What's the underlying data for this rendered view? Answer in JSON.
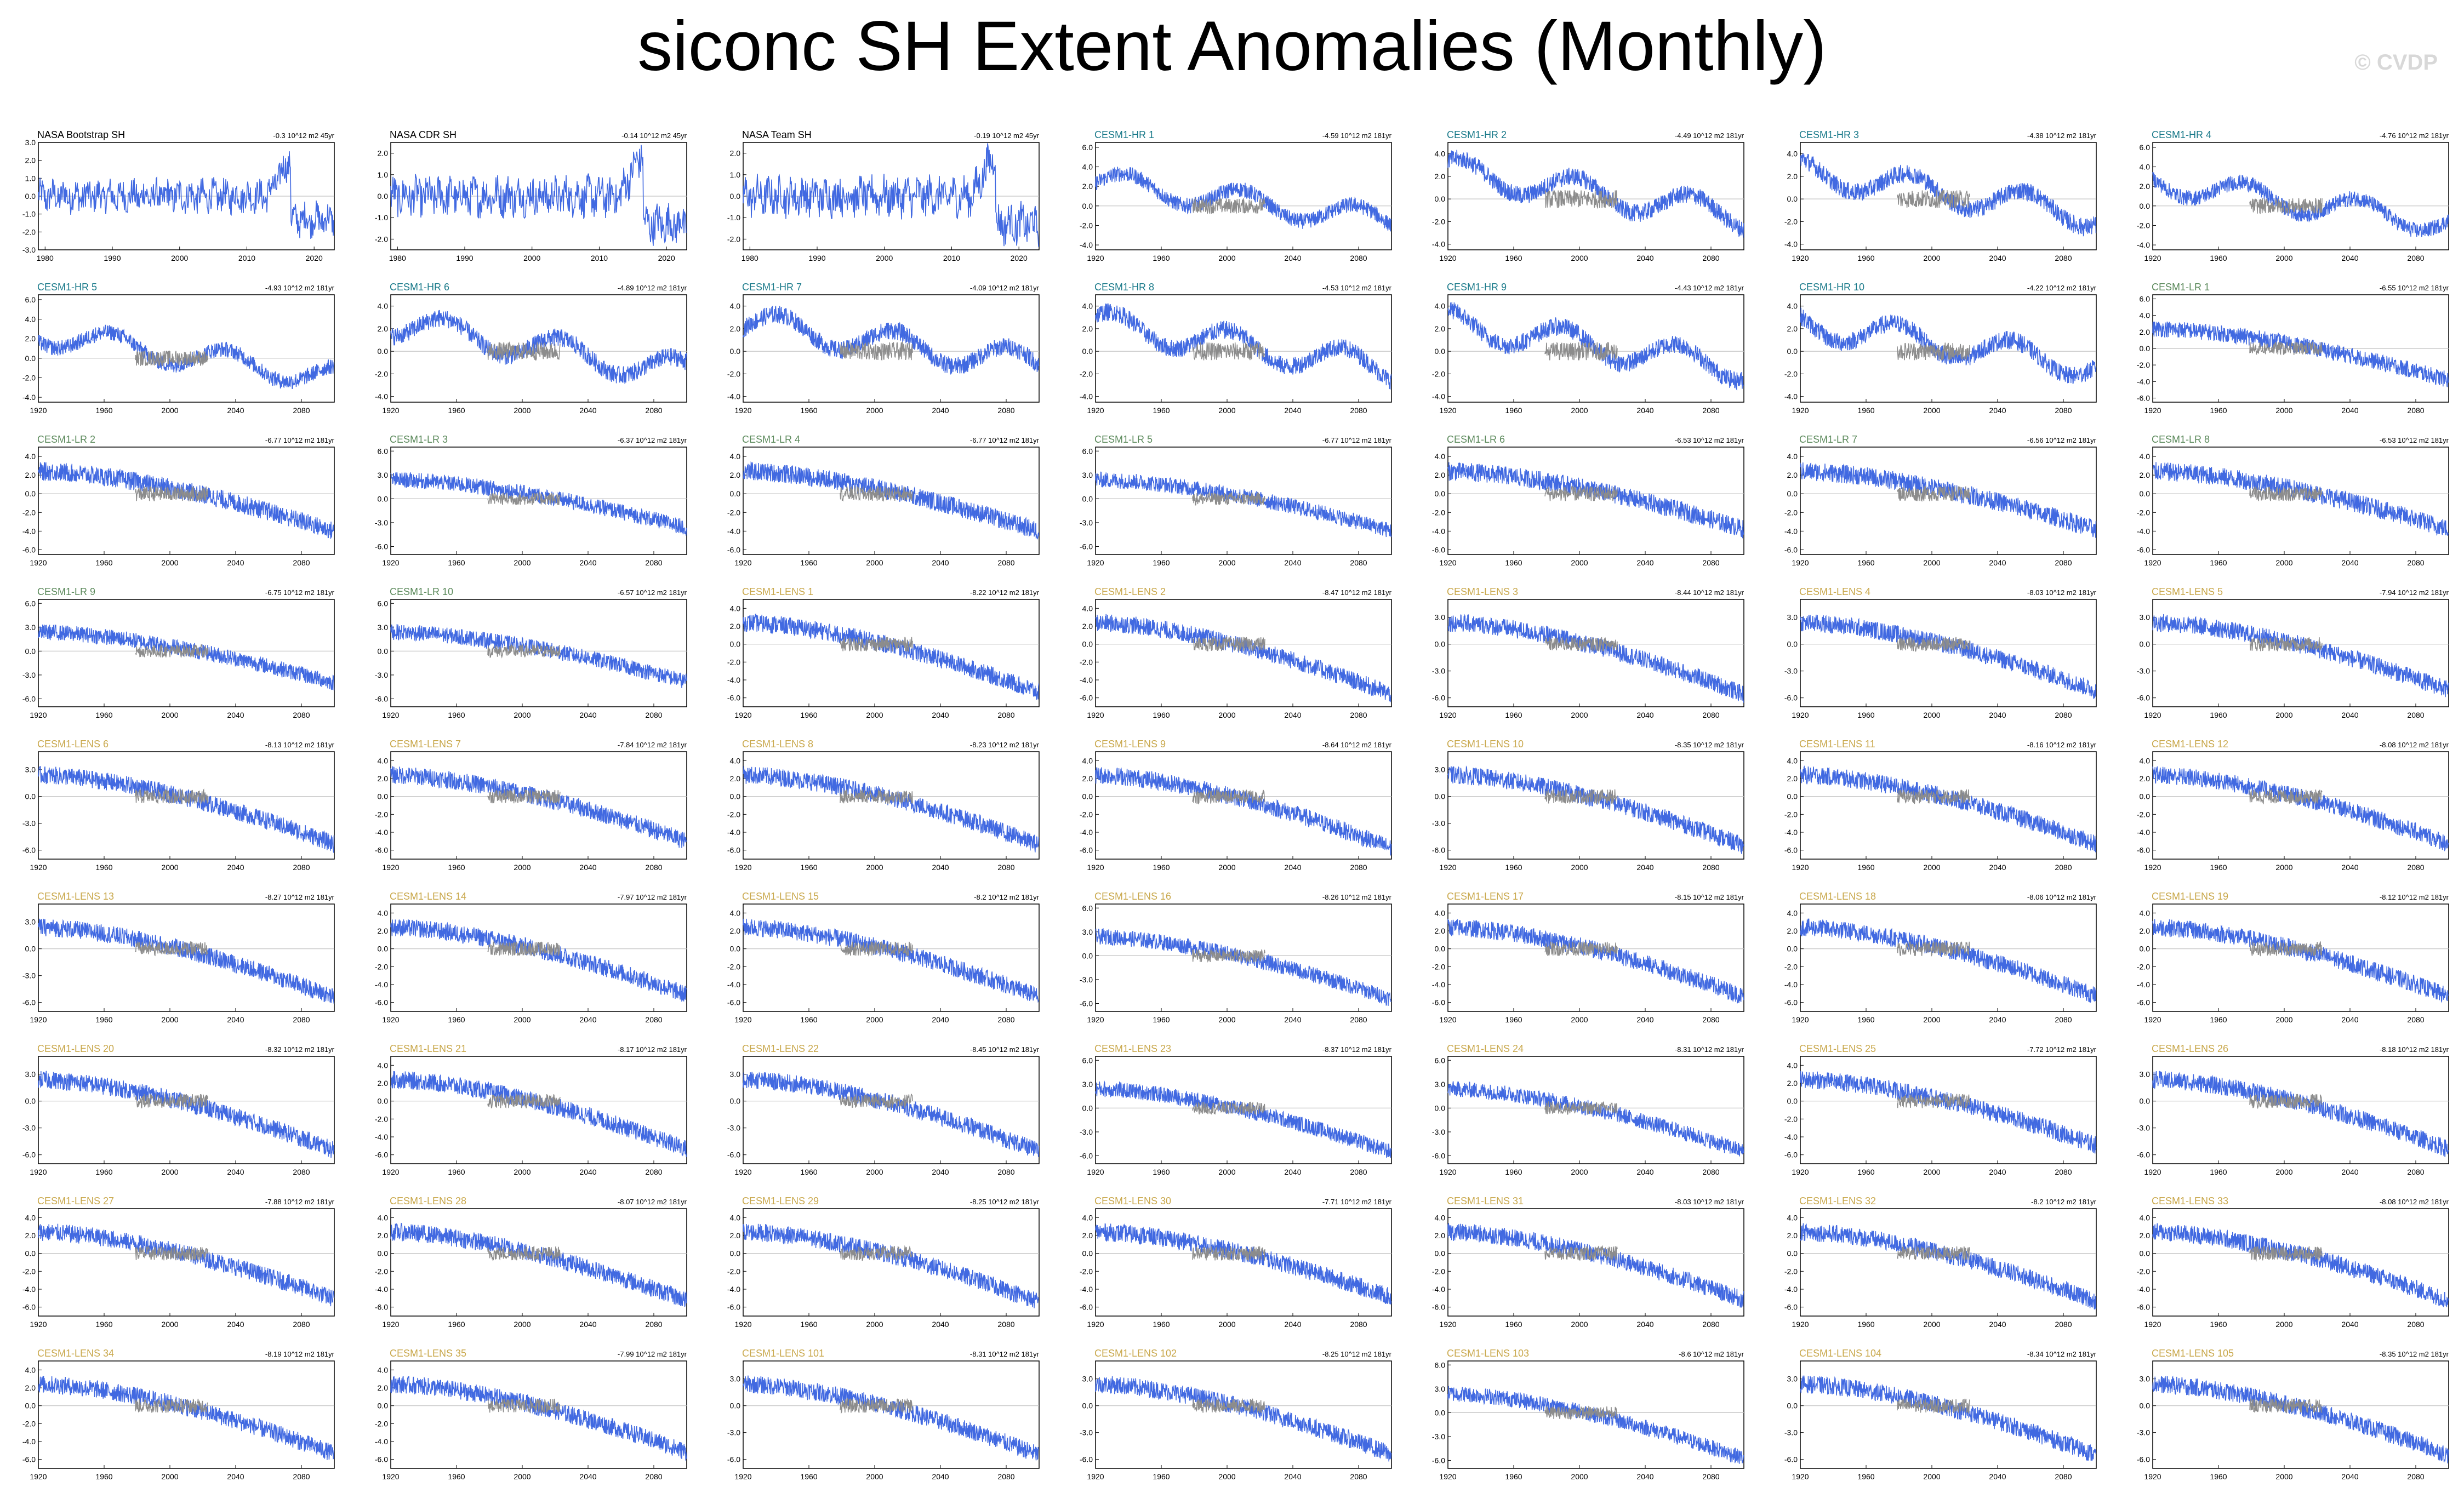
{
  "title": "siconc SH Extent Anomalies (Monthly)",
  "watermark": "© CVDP",
  "colors": {
    "model": "#4169e1",
    "obs_overlay": "#8c8c8c",
    "zero_line": "#c0c0c0",
    "label_obs": "#000000",
    "label_hr": "#1a7a8a",
    "label_lr": "#5c8a5c",
    "label_lens": "#c9a84c"
  },
  "chart_data": [
    {
      "type": "line",
      "label": "NASA Bootstrap SH",
      "trend": "-0.3 10^12 m2 45yr",
      "group": "obs",
      "x_range": [
        1979,
        2023
      ],
      "xticks": [
        "1980",
        "1990",
        "2000",
        "2010",
        "2020"
      ],
      "yticks": [
        "3.0",
        "2.0",
        "1.0",
        "0.0",
        "-1.0",
        "-2.0",
        "-3.0"
      ],
      "ylim": [
        -3,
        3
      ]
    },
    {
      "type": "line",
      "label": "NASA CDR SH",
      "trend": "-0.14 10^12 m2 45yr",
      "group": "obs",
      "x_range": [
        1979,
        2023
      ],
      "xticks": [
        "1980",
        "1990",
        "2000",
        "2010",
        "2020"
      ],
      "yticks": [
        "2.0",
        "1.0",
        "0.0",
        "-1.0",
        "-2.0"
      ],
      "ylim": [
        -2.5,
        2.5
      ]
    },
    {
      "type": "line",
      "label": "NASA Team SH",
      "trend": "-0.19 10^12 m2 45yr",
      "group": "obs",
      "x_range": [
        1979,
        2023
      ],
      "xticks": [
        "1980",
        "1990",
        "2000",
        "2010",
        "2020"
      ],
      "yticks": [
        "2.0",
        "1.0",
        "0.0",
        "-1.0",
        "-2.0"
      ],
      "ylim": [
        -2.5,
        2.5
      ]
    },
    {
      "type": "line",
      "label": "CESM1-HR 1",
      "trend": "-4.59 10^12 m2 181yr",
      "group": "hr",
      "yticks": [
        "6.0",
        "4.0",
        "2.0",
        "0.0",
        "-2.0",
        "-4.0"
      ],
      "ylim": [
        -4.5,
        6.5
      ]
    },
    {
      "type": "line",
      "label": "CESM1-HR 2",
      "trend": "-4.49 10^12 m2 181yr",
      "group": "hr",
      "yticks": [
        "4.0",
        "2.0",
        "0.0",
        "-2.0",
        "-4.0"
      ],
      "ylim": [
        -4.5,
        5
      ]
    },
    {
      "type": "line",
      "label": "CESM1-HR 3",
      "trend": "-4.38 10^12 m2 181yr",
      "group": "hr",
      "yticks": [
        "4.0",
        "2.0",
        "0.0",
        "-2.0",
        "-4.0"
      ],
      "ylim": [
        -4.5,
        5
      ]
    },
    {
      "type": "line",
      "label": "CESM1-HR 4",
      "trend": "-4.76 10^12 m2 181yr",
      "group": "hr",
      "yticks": [
        "6.0",
        "4.0",
        "2.0",
        "0.0",
        "-2.0",
        "-4.0"
      ],
      "ylim": [
        -4.5,
        6.5
      ]
    },
    {
      "type": "line",
      "label": "CESM1-HR 5",
      "trend": "-4.93 10^12 m2 181yr",
      "group": "hr",
      "yticks": [
        "6.0",
        "4.0",
        "2.0",
        "0.0",
        "-2.0",
        "-4.0"
      ],
      "ylim": [
        -4.5,
        6.5
      ]
    },
    {
      "type": "line",
      "label": "CESM1-HR 6",
      "trend": "-4.89 10^12 m2 181yr",
      "group": "hr",
      "yticks": [
        "4.0",
        "2.0",
        "0.0",
        "-2.0",
        "-4.0"
      ],
      "ylim": [
        -4.5,
        5
      ]
    },
    {
      "type": "line",
      "label": "CESM1-HR 7",
      "trend": "-4.09 10^12 m2 181yr",
      "group": "hr",
      "yticks": [
        "4.0",
        "2.0",
        "0.0",
        "-2.0",
        "-4.0"
      ],
      "ylim": [
        -4.5,
        5
      ]
    },
    {
      "type": "line",
      "label": "CESM1-HR 8",
      "trend": "-4.53 10^12 m2 181yr",
      "group": "hr",
      "yticks": [
        "4.0",
        "2.0",
        "0.0",
        "-2.0",
        "-4.0"
      ],
      "ylim": [
        -4.5,
        5
      ]
    },
    {
      "type": "line",
      "label": "CESM1-HR 9",
      "trend": "-4.43 10^12 m2 181yr",
      "group": "hr",
      "yticks": [
        "4.0",
        "2.0",
        "0.0",
        "-2.0",
        "-4.0"
      ],
      "ylim": [
        -4.5,
        5
      ]
    },
    {
      "type": "line",
      "label": "CESM1-HR 10",
      "trend": "-4.22 10^12 m2 181yr",
      "group": "hr",
      "yticks": [
        "4.0",
        "2.0",
        "0.0",
        "-2.0",
        "-4.0"
      ],
      "ylim": [
        -4.5,
        5
      ]
    },
    {
      "type": "line",
      "label": "CESM1-LR 1",
      "trend": "-6.55 10^12 m2 181yr",
      "group": "lr",
      "yticks": [
        "6.0",
        "4.0",
        "2.0",
        "0.0",
        "-2.0",
        "-4.0",
        "-6.0"
      ],
      "ylim": [
        -6.5,
        6.5
      ]
    },
    {
      "type": "line",
      "label": "CESM1-LR 2",
      "trend": "-6.77 10^12 m2 181yr",
      "group": "lr",
      "yticks": [
        "4.0",
        "2.0",
        "0.0",
        "-2.0",
        "-4.0",
        "-6.0"
      ],
      "ylim": [
        -6.5,
        5
      ]
    },
    {
      "type": "line",
      "label": "CESM1-LR 3",
      "trend": "-6.37 10^12 m2 181yr",
      "group": "lr",
      "yticks": [
        "6.0",
        "3.0",
        "0.0",
        "-3.0",
        "-6.0"
      ],
      "ylim": [
        -7,
        6.5
      ]
    },
    {
      "type": "line",
      "label": "CESM1-LR 4",
      "trend": "-6.77 10^12 m2 181yr",
      "group": "lr",
      "yticks": [
        "4.0",
        "2.0",
        "0.0",
        "-2.0",
        "-4.0",
        "-6.0"
      ],
      "ylim": [
        -6.5,
        5
      ]
    },
    {
      "type": "line",
      "label": "CESM1-LR 5",
      "trend": "-6.77 10^12 m2 181yr",
      "group": "lr",
      "yticks": [
        "6.0",
        "3.0",
        "0.0",
        "-3.0",
        "-6.0"
      ],
      "ylim": [
        -7,
        6.5
      ]
    },
    {
      "type": "line",
      "label": "CESM1-LR 6",
      "trend": "-6.53 10^12 m2 181yr",
      "group": "lr",
      "yticks": [
        "4.0",
        "2.0",
        "0.0",
        "-2.0",
        "-4.0",
        "-6.0"
      ],
      "ylim": [
        -6.5,
        5
      ]
    },
    {
      "type": "line",
      "label": "CESM1-LR 7",
      "trend": "-6.56 10^12 m2 181yr",
      "group": "lr",
      "yticks": [
        "4.0",
        "2.0",
        "0.0",
        "-2.0",
        "-4.0",
        "-6.0"
      ],
      "ylim": [
        -6.5,
        5
      ]
    },
    {
      "type": "line",
      "label": "CESM1-LR 8",
      "trend": "-6.53 10^12 m2 181yr",
      "group": "lr",
      "yticks": [
        "4.0",
        "2.0",
        "0.0",
        "-2.0",
        "-4.0",
        "-6.0"
      ],
      "ylim": [
        -6.5,
        5
      ]
    },
    {
      "type": "line",
      "label": "CESM1-LR 9",
      "trend": "-6.75 10^12 m2 181yr",
      "group": "lr",
      "yticks": [
        "6.0",
        "3.0",
        "0.0",
        "-3.0",
        "-6.0"
      ],
      "ylim": [
        -7,
        6.5
      ]
    },
    {
      "type": "line",
      "label": "CESM1-LR 10",
      "trend": "-6.57 10^12 m2 181yr",
      "group": "lr",
      "yticks": [
        "6.0",
        "3.0",
        "0.0",
        "-3.0",
        "-6.0"
      ],
      "ylim": [
        -7,
        6.5
      ]
    },
    {
      "type": "line",
      "label": "CESM1-LENS 1",
      "trend": "-8.22 10^12 m2 181yr",
      "group": "lens",
      "yticks": [
        "4.0",
        "2.0",
        "0.0",
        "-2.0",
        "-4.0",
        "-6.0"
      ],
      "ylim": [
        -7,
        5
      ]
    },
    {
      "type": "line",
      "label": "CESM1-LENS 2",
      "trend": "-8.47 10^12 m2 181yr",
      "group": "lens",
      "yticks": [
        "4.0",
        "2.0",
        "0.0",
        "-2.0",
        "-4.0",
        "-6.0"
      ],
      "ylim": [
        -7,
        5
      ]
    },
    {
      "type": "line",
      "label": "CESM1-LENS 3",
      "trend": "-8.44 10^12 m2 181yr",
      "group": "lens",
      "yticks": [
        "3.0",
        "0.0",
        "-3.0",
        "-6.0"
      ],
      "ylim": [
        -7,
        5
      ]
    },
    {
      "type": "line",
      "label": "CESM1-LENS 4",
      "trend": "-8.03 10^12 m2 181yr",
      "group": "lens",
      "yticks": [
        "3.0",
        "0.0",
        "-3.0",
        "-6.0"
      ],
      "ylim": [
        -7,
        5
      ]
    },
    {
      "type": "line",
      "label": "CESM1-LENS 5",
      "trend": "-7.94 10^12 m2 181yr",
      "group": "lens",
      "yticks": [
        "3.0",
        "0.0",
        "-3.0",
        "-6.0"
      ],
      "ylim": [
        -7,
        5
      ]
    },
    {
      "type": "line",
      "label": "CESM1-LENS 6",
      "trend": "-8.13 10^12 m2 181yr",
      "group": "lens",
      "yticks": [
        "3.0",
        "0.0",
        "-3.0",
        "-6.0"
      ],
      "ylim": [
        -7,
        5
      ]
    },
    {
      "type": "line",
      "label": "CESM1-LENS 7",
      "trend": "-7.84 10^12 m2 181yr",
      "group": "lens",
      "yticks": [
        "4.0",
        "2.0",
        "0.0",
        "-2.0",
        "-4.0",
        "-6.0"
      ],
      "ylim": [
        -7,
        5
      ]
    },
    {
      "type": "line",
      "label": "CESM1-LENS 8",
      "trend": "-8.23 10^12 m2 181yr",
      "group": "lens",
      "yticks": [
        "4.0",
        "2.0",
        "0.0",
        "-2.0",
        "-4.0",
        "-6.0"
      ],
      "ylim": [
        -7,
        5
      ]
    },
    {
      "type": "line",
      "label": "CESM1-LENS 9",
      "trend": "-8.64 10^12 m2 181yr",
      "group": "lens",
      "yticks": [
        "4.0",
        "2.0",
        "0.0",
        "-2.0",
        "-4.0",
        "-6.0"
      ],
      "ylim": [
        -7,
        5
      ]
    },
    {
      "type": "line",
      "label": "CESM1-LENS 10",
      "trend": "-8.35 10^12 m2 181yr",
      "group": "lens",
      "yticks": [
        "3.0",
        "0.0",
        "-3.0",
        "-6.0"
      ],
      "ylim": [
        -7,
        5
      ]
    },
    {
      "type": "line",
      "label": "CESM1-LENS 11",
      "trend": "-8.16 10^12 m2 181yr",
      "group": "lens",
      "yticks": [
        "4.0",
        "2.0",
        "0.0",
        "-2.0",
        "-4.0",
        "-6.0"
      ],
      "ylim": [
        -7,
        5
      ]
    },
    {
      "type": "line",
      "label": "CESM1-LENS 12",
      "trend": "-8.08 10^12 m2 181yr",
      "group": "lens",
      "yticks": [
        "4.0",
        "2.0",
        "0.0",
        "-2.0",
        "-4.0",
        "-6.0"
      ],
      "ylim": [
        -7,
        5
      ]
    },
    {
      "type": "line",
      "label": "CESM1-LENS 13",
      "trend": "-8.27 10^12 m2 181yr",
      "group": "lens",
      "yticks": [
        "3.0",
        "0.0",
        "-3.0",
        "-6.0"
      ],
      "ylim": [
        -7,
        5
      ]
    },
    {
      "type": "line",
      "label": "CESM1-LENS 14",
      "trend": "-7.97 10^12 m2 181yr",
      "group": "lens",
      "yticks": [
        "4.0",
        "2.0",
        "0.0",
        "-2.0",
        "-4.0",
        "-6.0"
      ],
      "ylim": [
        -7,
        5
      ]
    },
    {
      "type": "line",
      "label": "CESM1-LENS 15",
      "trend": "-8.2 10^12 m2 181yr",
      "group": "lens",
      "yticks": [
        "4.0",
        "2.0",
        "0.0",
        "-2.0",
        "-4.0",
        "-6.0"
      ],
      "ylim": [
        -7,
        5
      ]
    },
    {
      "type": "line",
      "label": "CESM1-LENS 16",
      "trend": "-8.26 10^12 m2 181yr",
      "group": "lens",
      "yticks": [
        "6.0",
        "3.0",
        "0.0",
        "-3.0",
        "-6.0"
      ],
      "ylim": [
        -7,
        6.5
      ]
    },
    {
      "type": "line",
      "label": "CESM1-LENS 17",
      "trend": "-8.15 10^12 m2 181yr",
      "group": "lens",
      "yticks": [
        "4.0",
        "2.0",
        "0.0",
        "-2.0",
        "-4.0",
        "-6.0"
      ],
      "ylim": [
        -7,
        5
      ]
    },
    {
      "type": "line",
      "label": "CESM1-LENS 18",
      "trend": "-8.06 10^12 m2 181yr",
      "group": "lens",
      "yticks": [
        "4.0",
        "2.0",
        "0.0",
        "-2.0",
        "-4.0",
        "-6.0"
      ],
      "ylim": [
        -7,
        5
      ]
    },
    {
      "type": "line",
      "label": "CESM1-LENS 19",
      "trend": "-8.12 10^12 m2 181yr",
      "group": "lens",
      "yticks": [
        "4.0",
        "2.0",
        "0.0",
        "-2.0",
        "-4.0",
        "-6.0"
      ],
      "ylim": [
        -7,
        5
      ]
    },
    {
      "type": "line",
      "label": "CESM1-LENS 20",
      "trend": "-8.32 10^12 m2 181yr",
      "group": "lens",
      "yticks": [
        "3.0",
        "0.0",
        "-3.0",
        "-6.0"
      ],
      "ylim": [
        -7,
        5
      ]
    },
    {
      "type": "line",
      "label": "CESM1-LENS 21",
      "trend": "-8.17 10^12 m2 181yr",
      "group": "lens",
      "yticks": [
        "4.0",
        "2.0",
        "0.0",
        "-2.0",
        "-4.0",
        "-6.0"
      ],
      "ylim": [
        -7,
        5
      ]
    },
    {
      "type": "line",
      "label": "CESM1-LENS 22",
      "trend": "-8.45 10^12 m2 181yr",
      "group": "lens",
      "yticks": [
        "3.0",
        "0.0",
        "-3.0",
        "-6.0"
      ],
      "ylim": [
        -7,
        5
      ]
    },
    {
      "type": "line",
      "label": "CESM1-LENS 23",
      "trend": "-8.37 10^12 m2 181yr",
      "group": "lens",
      "yticks": [
        "6.0",
        "3.0",
        "0.0",
        "-3.0",
        "-6.0"
      ],
      "ylim": [
        -7,
        6.5
      ]
    },
    {
      "type": "line",
      "label": "CESM1-LENS 24",
      "trend": "-8.31 10^12 m2 181yr",
      "group": "lens",
      "yticks": [
        "6.0",
        "3.0",
        "0.0",
        "-3.0",
        "-6.0"
      ],
      "ylim": [
        -7,
        6.5
      ]
    },
    {
      "type": "line",
      "label": "CESM1-LENS 25",
      "trend": "-7.72 10^12 m2 181yr",
      "group": "lens",
      "yticks": [
        "4.0",
        "2.0",
        "0.0",
        "-2.0",
        "-4.0",
        "-6.0"
      ],
      "ylim": [
        -7,
        5
      ]
    },
    {
      "type": "line",
      "label": "CESM1-LENS 26",
      "trend": "-8.18 10^12 m2 181yr",
      "group": "lens",
      "yticks": [
        "3.0",
        "0.0",
        "-3.0",
        "-6.0"
      ],
      "ylim": [
        -7,
        5
      ]
    },
    {
      "type": "line",
      "label": "CESM1-LENS 27",
      "trend": "-7.88 10^12 m2 181yr",
      "group": "lens",
      "yticks": [
        "4.0",
        "2.0",
        "0.0",
        "-2.0",
        "-4.0",
        "-6.0"
      ],
      "ylim": [
        -7,
        5
      ]
    },
    {
      "type": "line",
      "label": "CESM1-LENS 28",
      "trend": "-8.07 10^12 m2 181yr",
      "group": "lens",
      "yticks": [
        "4.0",
        "2.0",
        "0.0",
        "-2.0",
        "-4.0",
        "-6.0"
      ],
      "ylim": [
        -7,
        5
      ]
    },
    {
      "type": "line",
      "label": "CESM1-LENS 29",
      "trend": "-8.25 10^12 m2 181yr",
      "group": "lens",
      "yticks": [
        "4.0",
        "2.0",
        "0.0",
        "-2.0",
        "-4.0",
        "-6.0"
      ],
      "ylim": [
        -7,
        5
      ]
    },
    {
      "type": "line",
      "label": "CESM1-LENS 30",
      "trend": "-7.71 10^12 m2 181yr",
      "group": "lens",
      "yticks": [
        "4.0",
        "2.0",
        "0.0",
        "-2.0",
        "-4.0",
        "-6.0"
      ],
      "ylim": [
        -7,
        5
      ]
    },
    {
      "type": "line",
      "label": "CESM1-LENS 31",
      "trend": "-8.03 10^12 m2 181yr",
      "group": "lens",
      "yticks": [
        "4.0",
        "2.0",
        "0.0",
        "-2.0",
        "-4.0",
        "-6.0"
      ],
      "ylim": [
        -7,
        5
      ]
    },
    {
      "type": "line",
      "label": "CESM1-LENS 32",
      "trend": "-8.2 10^12 m2 181yr",
      "group": "lens",
      "yticks": [
        "4.0",
        "2.0",
        "0.0",
        "-2.0",
        "-4.0",
        "-6.0"
      ],
      "ylim": [
        -7,
        5
      ]
    },
    {
      "type": "line",
      "label": "CESM1-LENS 33",
      "trend": "-8.08 10^12 m2 181yr",
      "group": "lens",
      "yticks": [
        "4.0",
        "2.0",
        "0.0",
        "-2.0",
        "-4.0",
        "-6.0"
      ],
      "ylim": [
        -7,
        5
      ]
    },
    {
      "type": "line",
      "label": "CESM1-LENS 34",
      "trend": "-8.19 10^12 m2 181yr",
      "group": "lens",
      "yticks": [
        "4.0",
        "2.0",
        "0.0",
        "-2.0",
        "-4.0",
        "-6.0"
      ],
      "ylim": [
        -7,
        5
      ]
    },
    {
      "type": "line",
      "label": "CESM1-LENS 35",
      "trend": "-7.99 10^12 m2 181yr",
      "group": "lens",
      "yticks": [
        "4.0",
        "2.0",
        "0.0",
        "-2.0",
        "-4.0",
        "-6.0"
      ],
      "ylim": [
        -7,
        5
      ]
    },
    {
      "type": "line",
      "label": "CESM1-LENS 101",
      "trend": "-8.31 10^12 m2 181yr",
      "group": "lens",
      "yticks": [
        "3.0",
        "0.0",
        "-3.0",
        "-6.0"
      ],
      "ylim": [
        -7,
        5
      ]
    },
    {
      "type": "line",
      "label": "CESM1-LENS 102",
      "trend": "-8.25 10^12 m2 181yr",
      "group": "lens",
      "yticks": [
        "3.0",
        "0.0",
        "-3.0",
        "-6.0"
      ],
      "ylim": [
        -7,
        5
      ]
    },
    {
      "type": "line",
      "label": "CESM1-LENS 103",
      "trend": "-8.6 10^12 m2 181yr",
      "group": "lens",
      "yticks": [
        "6.0",
        "3.0",
        "0.0",
        "-3.0",
        "-6.0"
      ],
      "ylim": [
        -7,
        6.5
      ]
    },
    {
      "type": "line",
      "label": "CESM1-LENS 104",
      "trend": "-8.34 10^12 m2 181yr",
      "group": "lens",
      "yticks": [
        "3.0",
        "0.0",
        "-3.0",
        "-6.0"
      ],
      "ylim": [
        -7,
        5
      ]
    },
    {
      "type": "line",
      "label": "CESM1-LENS 105",
      "trend": "-8.35 10^12 m2 181yr",
      "group": "lens",
      "yticks": [
        "3.0",
        "0.0",
        "-3.0",
        "-6.0"
      ],
      "ylim": [
        -7,
        5
      ]
    }
  ],
  "model_x": {
    "range": [
      1920,
      2100
    ],
    "ticks": [
      "1920",
      "1960",
      "2000",
      "2040",
      "2080"
    ]
  }
}
